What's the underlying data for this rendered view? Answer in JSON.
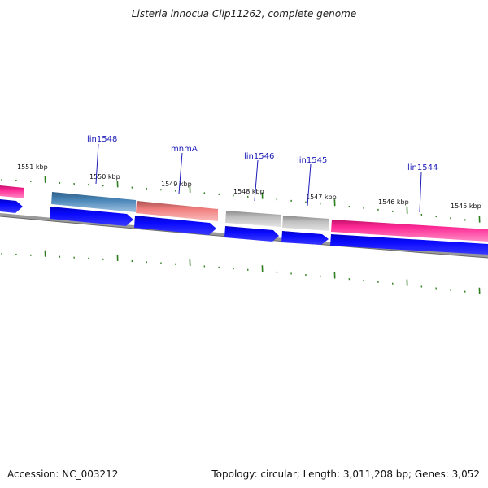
{
  "title": "Listeria innocua Clip11262, complete genome",
  "footer": {
    "accession": "Accession: NC_003212",
    "summary": "Topology: circular; Length: 3,011,208 bp; Genes: 3,052"
  },
  "colors": {
    "ruler_tick": "#2e7d1f",
    "backbone": "#808080",
    "cds": "#0000f0",
    "gene_pink": "#ff1f8e",
    "gene_steelblue": "#4682b4",
    "gene_salmon": "#f07f7f",
    "gene_gray": "#bdbdbd",
    "label_text": "#1a1ab8"
  },
  "ruler": {
    "labels": [
      "1551 kbp",
      "1550 kbp",
      "1549 kbp",
      "1548 kbp",
      "1547 kbp",
      "1546 kbp",
      "1545 kbp"
    ]
  },
  "genes": [
    {
      "name": "",
      "color": "pink"
    },
    {
      "name": "lin1548",
      "color": "steelblue"
    },
    {
      "name": "mnmA",
      "color": "salmon"
    },
    {
      "name": "lin1546",
      "color": "gray"
    },
    {
      "name": "lin1545",
      "color": "gray"
    },
    {
      "name": "lin1544",
      "color": "pink"
    }
  ]
}
